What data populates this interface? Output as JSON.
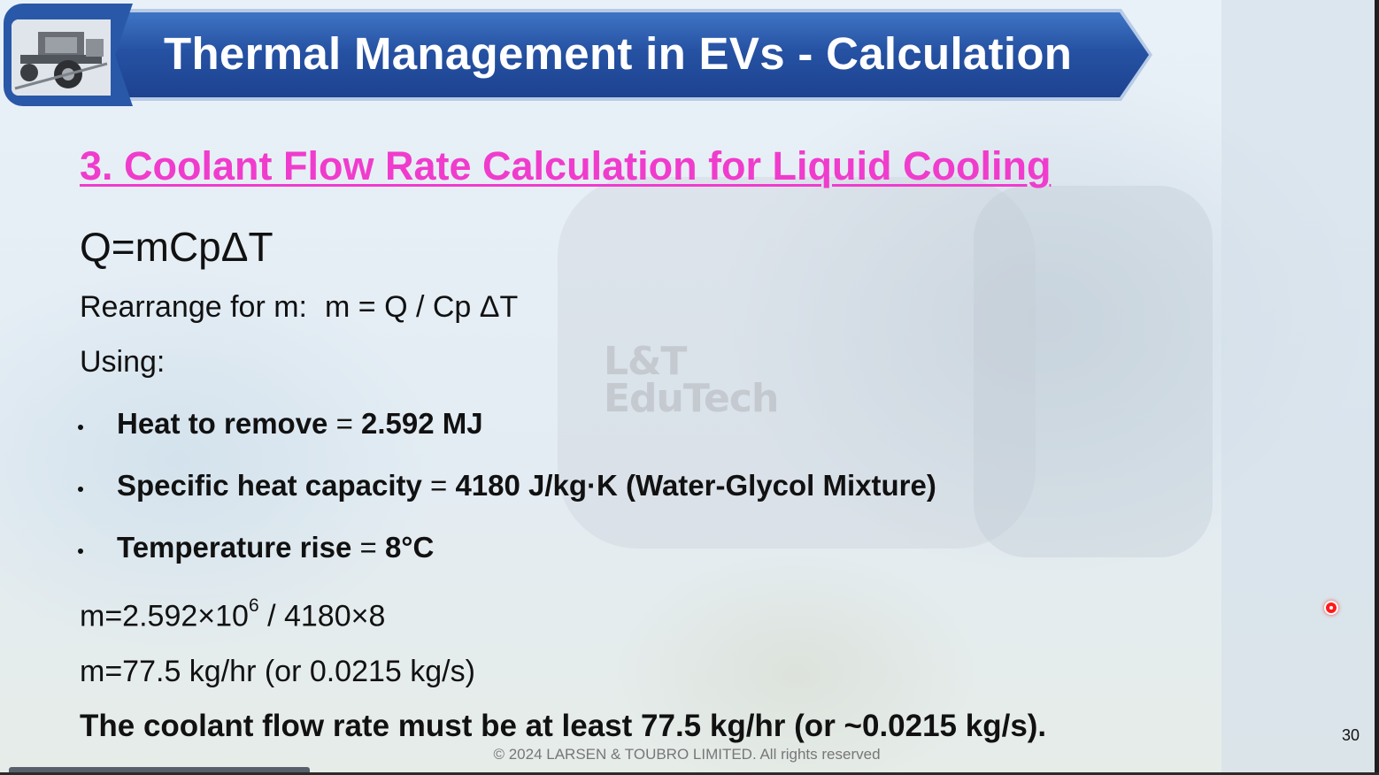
{
  "header": {
    "title": "Thermal Management in EVs - Calculation",
    "banner_color": "#2652a3",
    "thumbnail_icon": "ev-chassis-image"
  },
  "content": {
    "section_heading": "3.  Coolant Flow Rate Calculation for Liquid Cooling",
    "heading_color": "#f03ccd",
    "formula": "Q=mCpΔT",
    "rearrange_label": "Rearrange for m:",
    "rearrange_formula": "m = Q / Cp ΔT",
    "using_label": "Using:",
    "bullets": [
      {
        "label": "Heat to remove",
        "separator": " = ",
        "value": "2.592 MJ"
      },
      {
        "label": "Specific heat capacity",
        "separator": " = ",
        "value": "4180 J/kg·K (Water-Glycol Mixture)"
      },
      {
        "label": "Temperature rise",
        "separator": " = ",
        "value": "8°C"
      }
    ],
    "calc_step_1_prefix": "m=2.592×10",
    "calc_step_1_exponent": "6",
    "calc_step_1_suffix": " / 4180×8",
    "calc_step_2": "m=77.5 kg/hr (or 0.0215 kg/s)",
    "conclusion": "The coolant flow rate must be at least 77.5 kg/hr (or ~0.0215 kg/s)."
  },
  "watermark": {
    "line1": "L&T",
    "line2": "EduTech"
  },
  "footer": {
    "copyright": "© 2024 LARSEN & TOUBRO LIMITED. All rights reserved",
    "slide_number": "30"
  },
  "laser_pointer_color": "#ff1a1a"
}
